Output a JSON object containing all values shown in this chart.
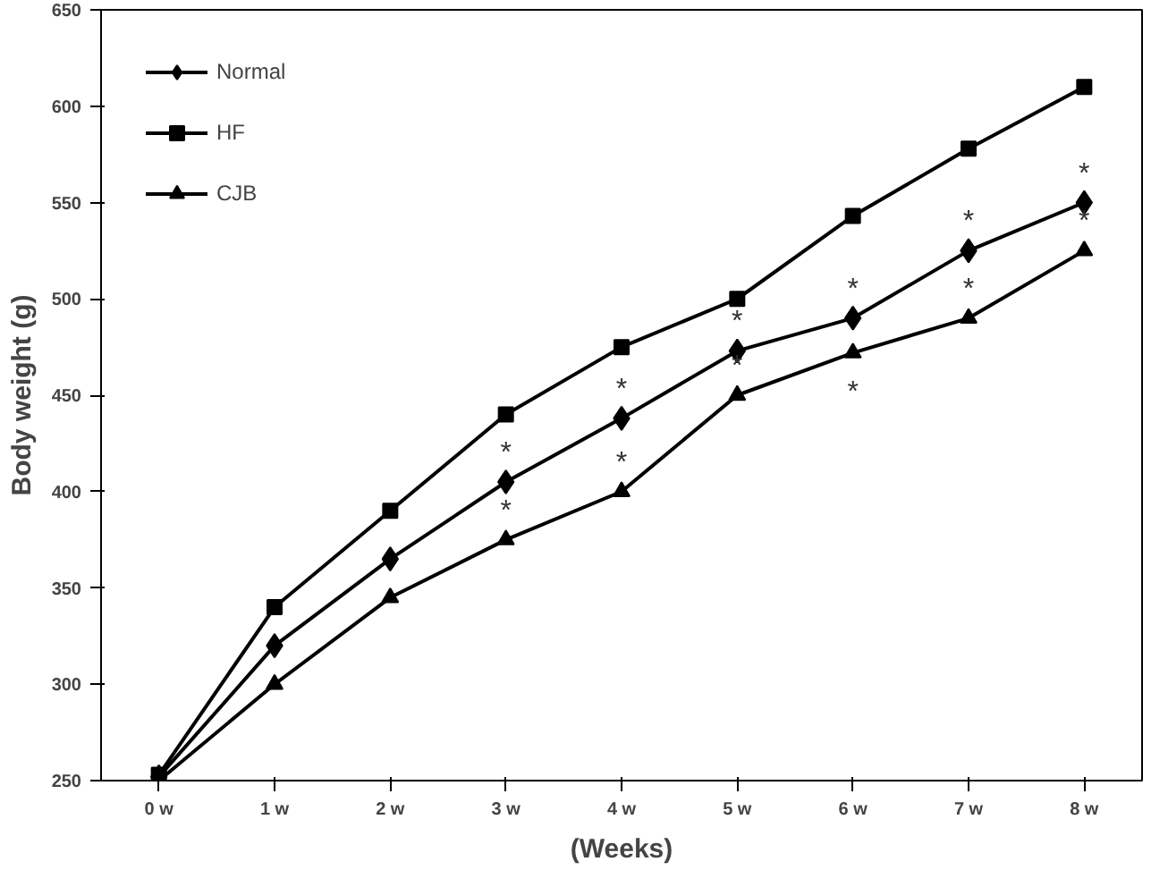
{
  "chart_data": {
    "type": "line",
    "xlabel": "(Weeks)",
    "ylabel": "Body weight (g)",
    "categories": [
      "0 w",
      "1 w",
      "2 w",
      "3 w",
      "4 w",
      "5 w",
      "6 w",
      "7 w",
      "8 w"
    ],
    "ylim": [
      250,
      650
    ],
    "yticks": [
      250,
      300,
      350,
      400,
      450,
      500,
      550,
      600,
      650
    ],
    "grid": false,
    "legend": "top left",
    "line_style": "solid",
    "series": [
      {
        "name": "Normal",
        "color": "#000000",
        "marker": "diamond",
        "values": [
          252,
          320,
          365,
          405,
          438,
          473,
          490,
          525,
          550
        ]
      },
      {
        "name": "HF",
        "color": "#000000",
        "marker": "square",
        "values": [
          253,
          340,
          390,
          440,
          475,
          500,
          543,
          578,
          610
        ]
      },
      {
        "name": "CJB",
        "color": "#000000",
        "marker": "triangle",
        "values": [
          250,
          300,
          345,
          375,
          400,
          450,
          472,
          490,
          525
        ]
      }
    ],
    "annotations": [
      {
        "text": "*",
        "x": "3 w",
        "y": 405
      },
      {
        "text": "*",
        "x": "4 w",
        "y": 438
      },
      {
        "text": "*",
        "x": "5 w",
        "y": 473
      },
      {
        "text": "*",
        "x": "6 w",
        "y": 490
      },
      {
        "text": "*",
        "x": "7 w",
        "y": 525
      },
      {
        "text": "*",
        "x": "8 w",
        "y": 550
      },
      {
        "text": "*",
        "x": "3 w",
        "y": 375
      },
      {
        "text": "*",
        "x": "4 w",
        "y": 400
      },
      {
        "text": "*",
        "x": "5 w",
        "y": 450
      },
      {
        "text": "*",
        "x": "6 w",
        "y": 472
      },
      {
        "text": "*",
        "x": "7 w",
        "y": 490
      },
      {
        "text": "*",
        "x": "8 w",
        "y": 525
      }
    ]
  }
}
